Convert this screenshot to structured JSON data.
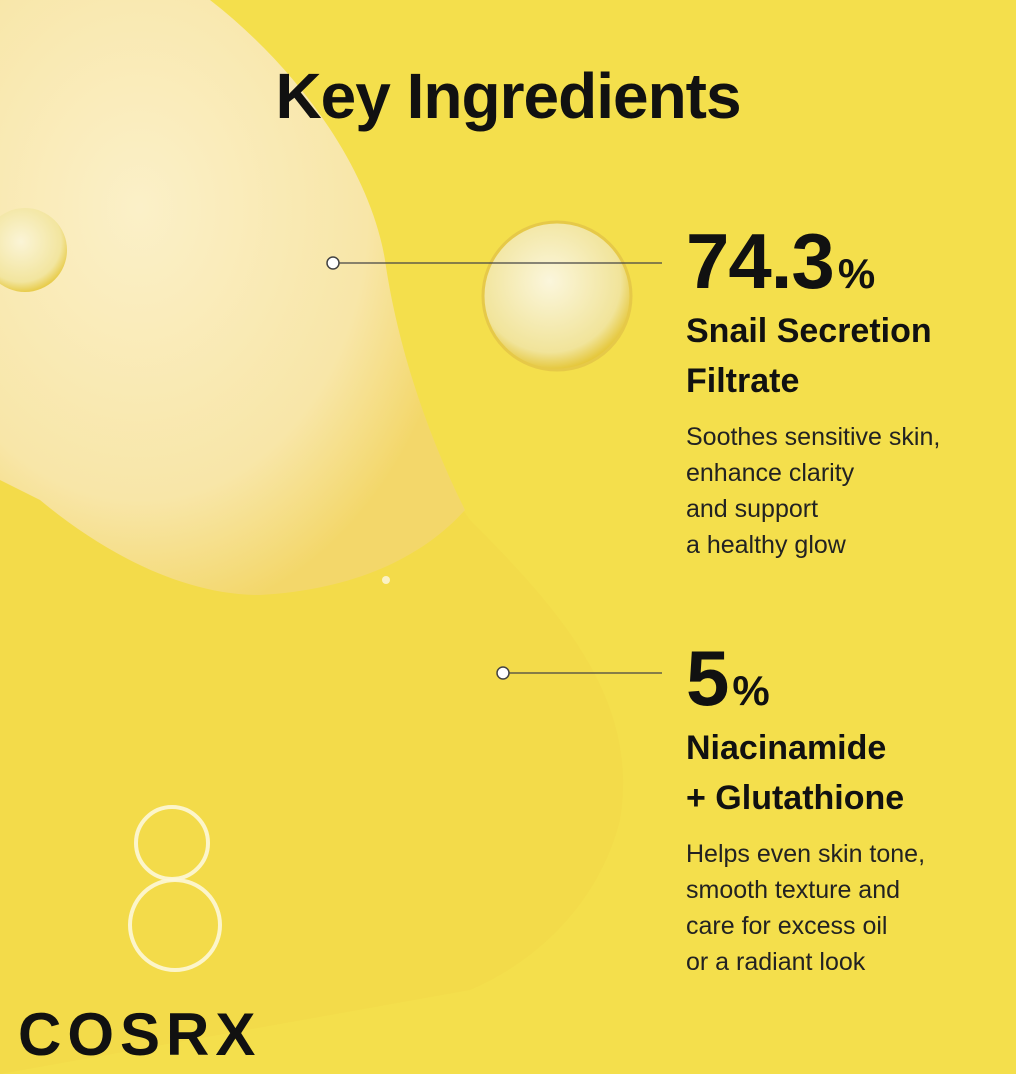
{
  "header": {
    "title": "Key Ingredients"
  },
  "ingredients": [
    {
      "percent": "74.3",
      "unit": "%",
      "name_lines": [
        "Snail Secretion",
        "Filtrate"
      ],
      "description_lines": [
        "Soothes sensitive skin,",
        "enhance clarity",
        "and support",
        "a healthy glow"
      ]
    },
    {
      "percent": "5",
      "unit": "%",
      "name_lines": [
        "Niacinamide",
        "+ Glutathione"
      ],
      "description_lines": [
        "Helps even skin tone,",
        "smooth texture and",
        "care for excess oil",
        "or a radiant look"
      ]
    }
  ],
  "brand": "COSRX"
}
